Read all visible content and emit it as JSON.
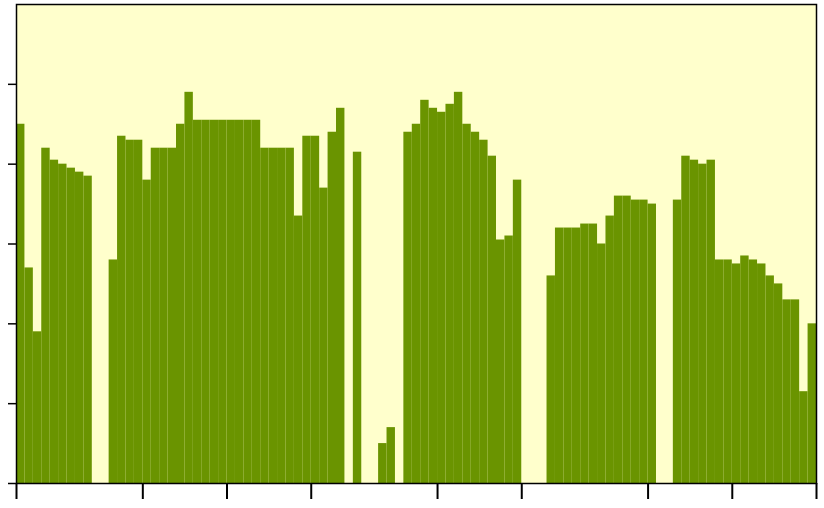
{
  "chart_data": {
    "type": "bar",
    "color": "#6a9400",
    "tick_labels": false,
    "xlim": [
      0,
      19
    ],
    "xticks": [
      0,
      3,
      5,
      7,
      10,
      12,
      15,
      17,
      19
    ],
    "ylim": [
      0,
      6
    ],
    "yticks": [
      0,
      1,
      2,
      3,
      4,
      5
    ],
    "x": [
      0,
      0.2,
      0.4,
      0.6,
      0.8,
      1,
      1.2,
      1.4,
      1.6,
      1.8,
      2,
      2.2,
      2.4,
      2.6,
      2.8,
      3,
      3.2,
      3.4,
      3.6,
      3.8,
      4,
      4.2,
      4.4,
      4.6,
      4.8,
      5,
      5.2,
      5.4,
      5.6,
      5.8,
      6,
      6.2,
      6.4,
      6.6,
      6.8,
      7,
      7.2,
      7.4,
      7.6,
      7.8,
      8,
      8.2,
      8.4,
      8.6,
      8.8,
      9,
      9.2,
      9.4,
      9.6,
      9.8,
      10,
      10.2,
      10.4,
      10.6,
      10.8,
      11,
      11.2,
      11.4,
      11.6,
      11.8,
      12,
      12.2,
      12.4,
      12.6,
      12.8,
      13,
      13.2,
      13.4,
      13.6,
      13.8,
      14,
      14.2,
      14.4,
      14.6,
      14.8,
      15,
      15.2,
      15.4,
      15.6,
      15.8,
      16,
      16.2,
      16.4,
      16.6,
      16.8,
      17,
      17.2,
      17.4,
      17.6,
      17.8,
      18,
      18.2,
      18.4,
      18.6,
      18.8
    ],
    "values": [
      4.5,
      2.7,
      1.9,
      4.2,
      4.05,
      4.0,
      3.95,
      3.9,
      3.85,
      0,
      0,
      2.8,
      4.35,
      4.3,
      4.3,
      3.8,
      4.2,
      4.2,
      4.2,
      4.5,
      4.9,
      4.55,
      4.55,
      4.55,
      4.55,
      4.55,
      4.55,
      4.55,
      4.55,
      4.2,
      4.2,
      4.2,
      4.2,
      3.35,
      4.35,
      4.35,
      3.7,
      4.4,
      4.7,
      0,
      4.15,
      0,
      0,
      0.5,
      0.7,
      0,
      4.4,
      4.5,
      4.8,
      4.7,
      4.65,
      4.75,
      4.9,
      4.5,
      4.4,
      4.3,
      4.1,
      3.05,
      3.1,
      3.8,
      0,
      0,
      0,
      2.6,
      3.2,
      3.2,
      3.2,
      3.25,
      3.25,
      3.0,
      3.35,
      3.6,
      3.6,
      3.55,
      3.55,
      3.5,
      0,
      0,
      3.55,
      4.1,
      4.05,
      4.0,
      4.05,
      2.8,
      2.8,
      2.75,
      2.85,
      2.8,
      2.75,
      2.6,
      2.5,
      2.3,
      2.3,
      1.15,
      2.0
    ]
  }
}
